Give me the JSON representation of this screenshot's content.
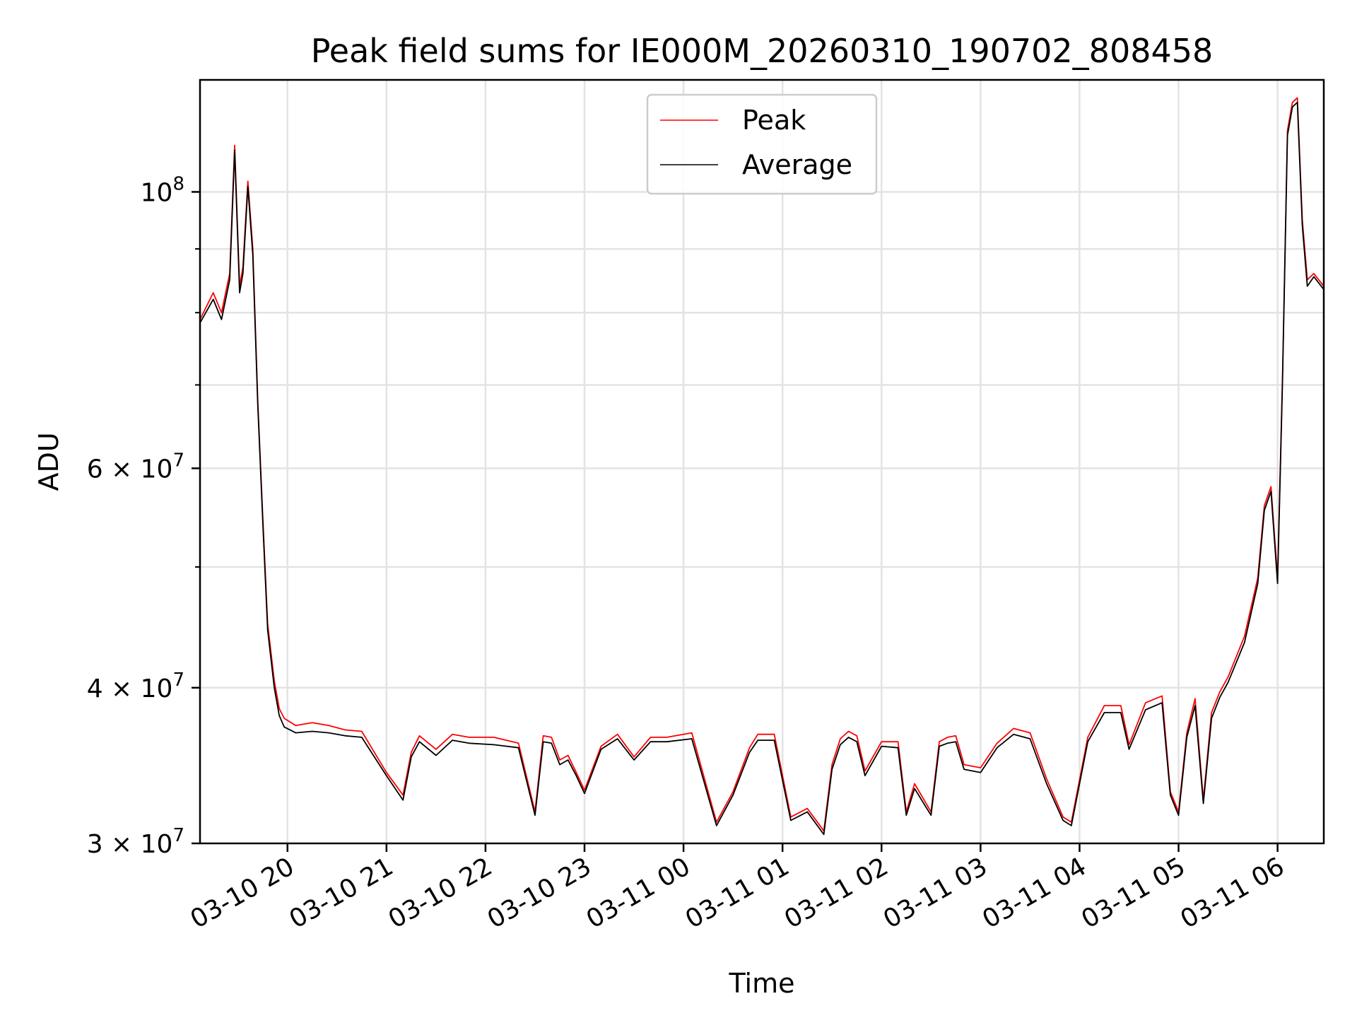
{
  "chart_data": {
    "type": "line",
    "title": "Peak field sums for IE000M_20260310_190702_808458",
    "xlabel": "Time",
    "ylabel": "ADU",
    "y_scale": "log",
    "ylim": [
      30000000,
      123000000
    ],
    "xlim": [
      "03-10 19:07",
      "03-11 06:28"
    ],
    "grid": true,
    "legend_position": "top-center",
    "x_ticks": [
      {
        "label": "03-10 20",
        "time": "03-10 20:00"
      },
      {
        "label": "03-10 21",
        "time": "03-10 21:00"
      },
      {
        "label": "03-10 22",
        "time": "03-10 22:00"
      },
      {
        "label": "03-10 23",
        "time": "03-10 23:00"
      },
      {
        "label": "03-11 00",
        "time": "03-11 00:00"
      },
      {
        "label": "03-11 01",
        "time": "03-11 01:00"
      },
      {
        "label": "03-11 02",
        "time": "03-11 02:00"
      },
      {
        "label": "03-11 03",
        "time": "03-11 03:00"
      },
      {
        "label": "03-11 04",
        "time": "03-11 04:00"
      },
      {
        "label": "03-11 05",
        "time": "03-11 05:00"
      },
      {
        "label": "03-11 06",
        "time": "03-11 06:00"
      }
    ],
    "y_ticks": [
      {
        "base": "10",
        "exp": "8",
        "mant": "",
        "value": 100000000
      },
      {
        "base": "10",
        "exp": "7",
        "mant": "6 × ",
        "value": 60000000
      },
      {
        "base": "10",
        "exp": "7",
        "mant": "4 × ",
        "value": 40000000
      },
      {
        "base": "10",
        "exp": "7",
        "mant": "3 × ",
        "value": 30000000
      }
    ],
    "series": [
      {
        "name": "Peak",
        "color": "#ff0000",
        "x": [
          "03-10 19:07",
          "03-10 19:15",
          "03-10 19:20",
          "03-10 19:25",
          "03-10 19:28",
          "03-10 19:31",
          "03-10 19:33",
          "03-10 19:36",
          "03-10 19:39",
          "03-10 19:42",
          "03-10 19:45",
          "03-10 19:48",
          "03-10 19:52",
          "03-10 19:55",
          "03-10 19:58",
          "03-10 20:05",
          "03-10 20:15",
          "03-10 20:25",
          "03-10 20:35",
          "03-10 20:45",
          "03-10 21:00",
          "03-10 21:10",
          "03-10 21:15",
          "03-10 21:20",
          "03-10 21:30",
          "03-10 21:40",
          "03-10 21:50",
          "03-10 22:05",
          "03-10 22:20",
          "03-10 22:30",
          "03-10 22:35",
          "03-10 22:40",
          "03-10 22:45",
          "03-10 22:50",
          "03-10 22:55",
          "03-10 23:00",
          "03-10 23:10",
          "03-10 23:20",
          "03-10 23:30",
          "03-10 23:40",
          "03-10 23:50",
          "03-11 00:05",
          "03-11 00:20",
          "03-11 00:30",
          "03-11 00:40",
          "03-11 00:45",
          "03-11 00:55",
          "03-11 01:05",
          "03-11 01:15",
          "03-11 01:25",
          "03-11 01:30",
          "03-11 01:35",
          "03-11 01:40",
          "03-11 01:45",
          "03-11 01:50",
          "03-11 02:00",
          "03-11 02:10",
          "03-11 02:15",
          "03-11 02:20",
          "03-11 02:30",
          "03-11 02:35",
          "03-11 02:40",
          "03-11 02:45",
          "03-11 02:50",
          "03-11 03:00",
          "03-11 03:10",
          "03-11 03:20",
          "03-11 03:30",
          "03-11 03:40",
          "03-11 03:50",
          "03-11 03:55",
          "03-11 04:05",
          "03-11 04:15",
          "03-11 04:25",
          "03-11 04:30",
          "03-11 04:40",
          "03-11 04:50",
          "03-11 04:55",
          "03-11 05:00",
          "03-11 05:05",
          "03-11 05:10",
          "03-11 05:15",
          "03-11 05:20",
          "03-11 05:25",
          "03-11 05:30",
          "03-11 05:40",
          "03-11 05:48",
          "03-11 05:52",
          "03-11 05:56",
          "03-11 06:00",
          "03-11 06:03",
          "03-11 06:06",
          "03-11 06:09",
          "03-11 06:12",
          "03-11 06:15",
          "03-11 06:18",
          "03-11 06:22",
          "03-11 06:28"
        ],
        "values": [
          79000000,
          83000000,
          80000000,
          86000000,
          109000000,
          84000000,
          87000000,
          102000000,
          90000000,
          68000000,
          55000000,
          45000000,
          40500000,
          38500000,
          37800000,
          37300000,
          37500000,
          37300000,
          37000000,
          36900000,
          34200000,
          32800000,
          35500000,
          36600000,
          35700000,
          36700000,
          36500000,
          36500000,
          36100000,
          31800000,
          36600000,
          36500000,
          35000000,
          35300000,
          34200000,
          33100000,
          35900000,
          36700000,
          35200000,
          36500000,
          36500000,
          36800000,
          31200000,
          33000000,
          35800000,
          36700000,
          36700000,
          31500000,
          32000000,
          30700000,
          34700000,
          36400000,
          36900000,
          36600000,
          34300000,
          36200000,
          36200000,
          31800000,
          33500000,
          31800000,
          36200000,
          36500000,
          36600000,
          34700000,
          34500000,
          36100000,
          37100000,
          36800000,
          33800000,
          31500000,
          31200000,
          36500000,
          38700000,
          38700000,
          36000000,
          38900000,
          39400000,
          33000000,
          31800000,
          36800000,
          39200000,
          32500000,
          38200000,
          39700000,
          40800000,
          44000000,
          49000000,
          56000000,
          58000000,
          49000000,
          71000000,
          112000000,
          118000000,
          119000000,
          95000000,
          85000000,
          86000000,
          84000000
        ]
      },
      {
        "name": "Average",
        "color": "#000000",
        "x": [
          "03-10 19:07",
          "03-10 19:15",
          "03-10 19:20",
          "03-10 19:25",
          "03-10 19:28",
          "03-10 19:31",
          "03-10 19:33",
          "03-10 19:36",
          "03-10 19:39",
          "03-10 19:42",
          "03-10 19:45",
          "03-10 19:48",
          "03-10 19:52",
          "03-10 19:55",
          "03-10 19:58",
          "03-10 20:05",
          "03-10 20:15",
          "03-10 20:25",
          "03-10 20:35",
          "03-10 20:45",
          "03-10 21:00",
          "03-10 21:10",
          "03-10 21:15",
          "03-10 21:20",
          "03-10 21:30",
          "03-10 21:40",
          "03-10 21:50",
          "03-10 22:05",
          "03-10 22:20",
          "03-10 22:30",
          "03-10 22:35",
          "03-10 22:40",
          "03-10 22:45",
          "03-10 22:50",
          "03-10 22:55",
          "03-10 23:00",
          "03-10 23:10",
          "03-10 23:20",
          "03-10 23:30",
          "03-10 23:40",
          "03-10 23:50",
          "03-11 00:05",
          "03-11 00:20",
          "03-11 00:30",
          "03-11 00:40",
          "03-11 00:45",
          "03-11 00:55",
          "03-11 01:05",
          "03-11 01:15",
          "03-11 01:25",
          "03-11 01:30",
          "03-11 01:35",
          "03-11 01:40",
          "03-11 01:45",
          "03-11 01:50",
          "03-11 02:00",
          "03-11 02:10",
          "03-11 02:15",
          "03-11 02:20",
          "03-11 02:30",
          "03-11 02:35",
          "03-11 02:40",
          "03-11 02:45",
          "03-11 02:50",
          "03-11 03:00",
          "03-11 03:10",
          "03-11 03:20",
          "03-11 03:30",
          "03-11 03:40",
          "03-11 03:50",
          "03-11 03:55",
          "03-11 04:05",
          "03-11 04:15",
          "03-11 04:25",
          "03-11 04:30",
          "03-11 04:40",
          "03-11 04:50",
          "03-11 04:55",
          "03-11 05:00",
          "03-11 05:05",
          "03-11 05:10",
          "03-11 05:15",
          "03-11 05:20",
          "03-11 05:25",
          "03-11 05:30",
          "03-11 05:40",
          "03-11 05:48",
          "03-11 05:52",
          "03-11 05:56",
          "03-11 06:00",
          "03-11 06:03",
          "03-11 06:06",
          "03-11 06:09",
          "03-11 06:12",
          "03-11 06:15",
          "03-11 06:18",
          "03-11 06:22",
          "03-11 06:28"
        ],
        "values": [
          78500000,
          82000000,
          79000000,
          85000000,
          108000000,
          83000000,
          86000000,
          101000000,
          89000000,
          67500000,
          54500000,
          44500000,
          40000000,
          38000000,
          37200000,
          36800000,
          36900000,
          36800000,
          36600000,
          36500000,
          34000000,
          32500000,
          35200000,
          36200000,
          35300000,
          36300000,
          36100000,
          36000000,
          35800000,
          31600000,
          36200000,
          36100000,
          34700000,
          35000000,
          34000000,
          32900000,
          35700000,
          36400000,
          35000000,
          36200000,
          36200000,
          36400000,
          31000000,
          32800000,
          35500000,
          36300000,
          36300000,
          31300000,
          31800000,
          30500000,
          34400000,
          36000000,
          36500000,
          36200000,
          34000000,
          35900000,
          35800000,
          31600000,
          33200000,
          31600000,
          35900000,
          36100000,
          36200000,
          34400000,
          34200000,
          35800000,
          36700000,
          36400000,
          33500000,
          31300000,
          31000000,
          36200000,
          38200000,
          38200000,
          35700000,
          38400000,
          38900000,
          32800000,
          31600000,
          36500000,
          38700000,
          32300000,
          37800000,
          39300000,
          40400000,
          43500000,
          48500000,
          55500000,
          57500000,
          48500000,
          70500000,
          111000000,
          117000000,
          118000000,
          94000000,
          84000000,
          85500000,
          83500000
        ]
      }
    ]
  }
}
